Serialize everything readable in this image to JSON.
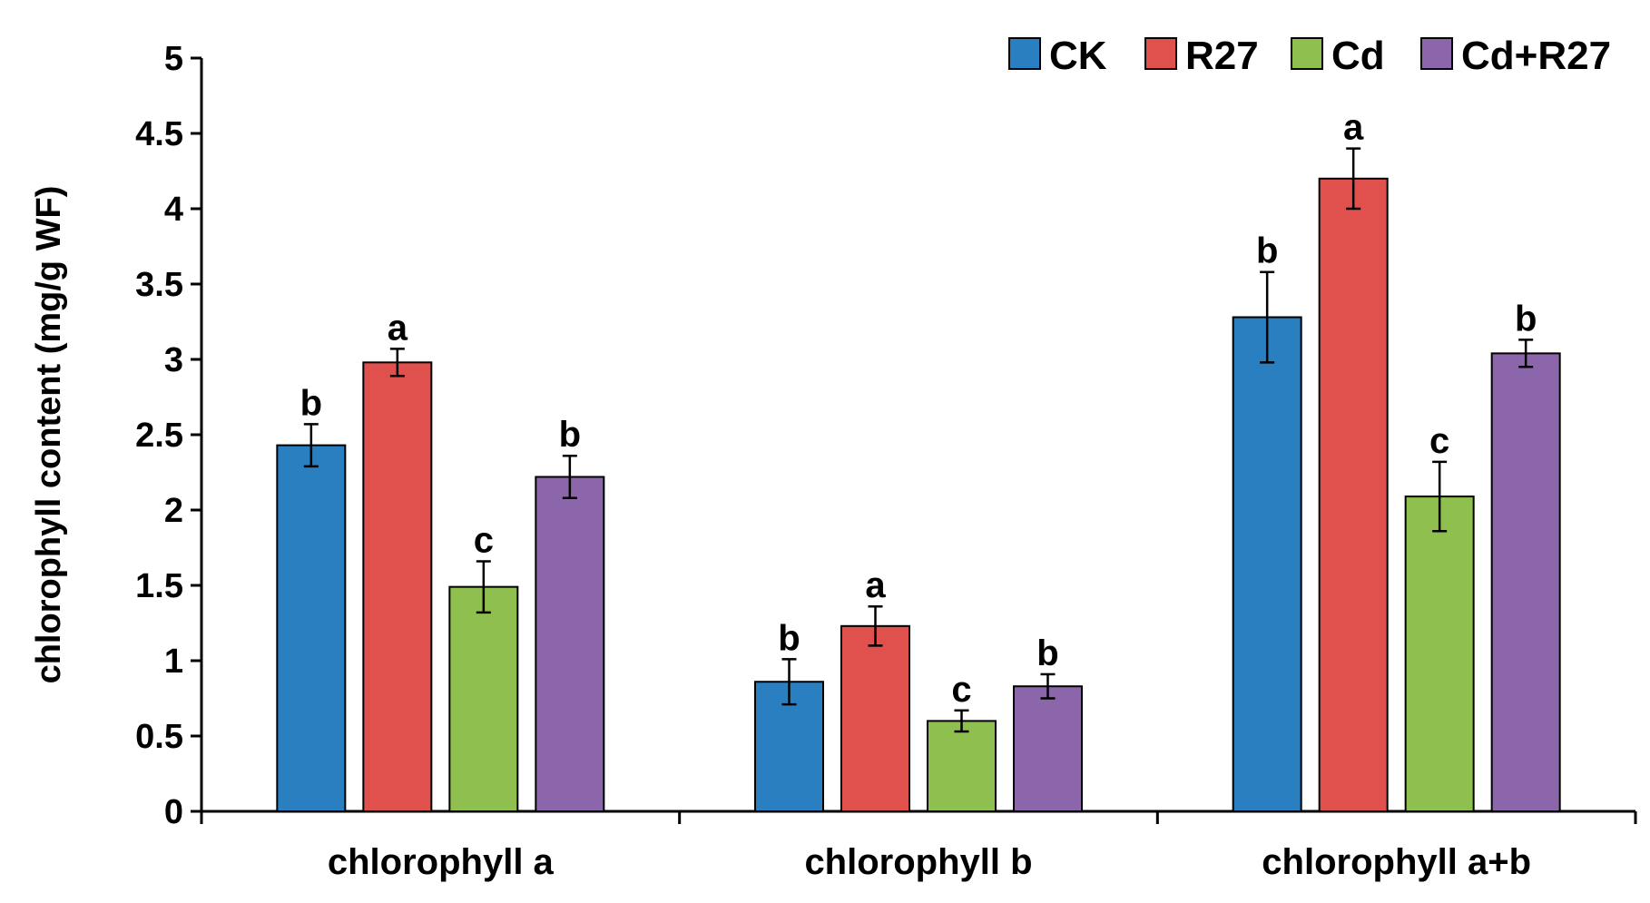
{
  "chart_data": {
    "type": "bar",
    "title": "",
    "xlabel": "",
    "ylabel": "chlorophyll content (mg/g WF)",
    "ylim": [
      0,
      5
    ],
    "yticks": [
      0,
      0.5,
      1,
      1.5,
      2,
      2.5,
      3,
      3.5,
      4,
      4.5,
      5
    ],
    "ytick_labels": [
      "0",
      "0.5",
      "1",
      "1.5",
      "2",
      "2.5",
      "3",
      "3.5",
      "4",
      "4.5",
      "5"
    ],
    "grid": false,
    "legend_position": "top-right",
    "categories": [
      "chlorophyll a",
      "chlorophyll b",
      "chlorophyll a+b"
    ],
    "series": [
      {
        "name": "CK",
        "color": "#2a7fc0",
        "values": [
          2.43,
          0.86,
          3.28
        ],
        "errors": [
          0.14,
          0.15,
          0.3
        ],
        "letters": [
          "b",
          "b",
          "b"
        ]
      },
      {
        "name": "R27",
        "color": "#e0504c",
        "values": [
          2.98,
          1.23,
          4.2
        ],
        "errors": [
          0.09,
          0.13,
          0.2
        ],
        "letters": [
          "a",
          "a",
          "a"
        ]
      },
      {
        "name": "Cd",
        "color": "#8fbf4f",
        "values": [
          1.49,
          0.6,
          2.09
        ],
        "errors": [
          0.17,
          0.07,
          0.23
        ],
        "letters": [
          "c",
          "c",
          "c"
        ]
      },
      {
        "name": "Cd+R27",
        "color": "#8c66aa",
        "values": [
          2.22,
          0.83,
          3.04
        ],
        "errors": [
          0.14,
          0.08,
          0.09
        ],
        "letters": [
          "b",
          "b",
          "b"
        ]
      }
    ]
  }
}
